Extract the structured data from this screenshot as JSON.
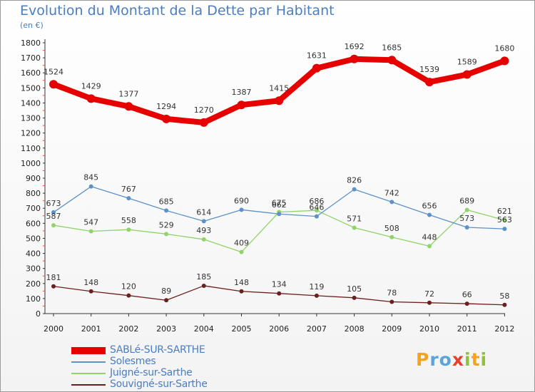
{
  "title": "Evolution du Montant de la Dette par Habitant",
  "subtitle": "(en €)",
  "logo": {
    "letters": [
      "P",
      "r",
      "o",
      "x",
      "i",
      "t",
      "i"
    ],
    "colors": [
      "#f7a21c",
      "#5ba4dc",
      "#5ba4dc",
      "#e8402a",
      "#8fc13c",
      "#f7a21c",
      "#8fc13c"
    ]
  },
  "chart_data": {
    "type": "line",
    "x": [
      "2000",
      "2001",
      "2002",
      "2003",
      "2004",
      "2005",
      "2006",
      "2007",
      "2008",
      "2009",
      "2010",
      "2011",
      "2012"
    ],
    "ylim": [
      0,
      1800
    ],
    "yticks": [
      0,
      100,
      200,
      300,
      400,
      500,
      600,
      700,
      800,
      900,
      1000,
      1100,
      1200,
      1300,
      1400,
      1500,
      1600,
      1700,
      1800
    ],
    "grid": false,
    "legend_position": "bottom-left",
    "series": [
      {
        "name": "SABLé-SUR-SARTHE",
        "color": "#e60000",
        "values": [
          1524,
          1429,
          1377,
          1294,
          1270,
          1387,
          1415,
          1631,
          1692,
          1685,
          1539,
          1589,
          1680
        ]
      },
      {
        "name": "Solesmes",
        "color": "#5b92c9",
        "values": [
          673,
          845,
          767,
          685,
          614,
          690,
          662,
          646,
          826,
          742,
          656,
          573,
          563
        ]
      },
      {
        "name": "Juigné-sur-Sarthe",
        "color": "#8fd36a",
        "values": [
          587,
          547,
          558,
          529,
          493,
          409,
          675,
          686,
          571,
          508,
          448,
          689,
          621
        ]
      },
      {
        "name": "Souvigné-sur-Sarthe",
        "color": "#6b1f1f",
        "values": [
          181,
          148,
          120,
          89,
          185,
          148,
          134,
          119,
          105,
          78,
          72,
          66,
          58
        ]
      }
    ]
  }
}
